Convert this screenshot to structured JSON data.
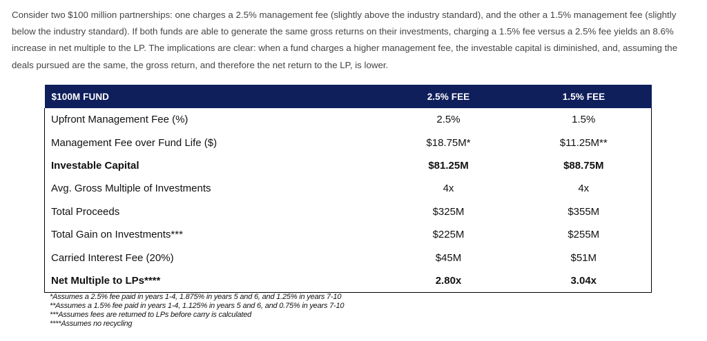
{
  "intro": {
    "text": "Consider two $100 million partnerships: one charges a 2.5% management fee (slightly above the industry standard), and the other a 1.5% management fee (slightly below the industry standard). If both funds are able to generate the same gross returns on their investments, charging a 1.5% fee versus a 2.5% fee yields an 8.6% increase in net multiple to the LP. The implications are clear: when a fund charges a higher management fee, the investable capital is diminished, and, assuming the deals pursued are the same, the gross return, and therefore the net return to the LP, is lower."
  },
  "table": {
    "headers": [
      "$100M FUND",
      "2.5% FEE",
      "1.5% FEE"
    ],
    "rows": [
      {
        "label": "Upfront Management Fee (%)",
        "fee25": "2.5%",
        "fee15": "1.5%",
        "bold": false
      },
      {
        "label": "Management Fee over Fund Life ($)",
        "fee25": "$18.75M*",
        "fee15": "$11.25M**",
        "bold": false
      },
      {
        "label": "Investable Capital",
        "fee25": "$81.25M",
        "fee15": "$88.75M",
        "bold": true
      },
      {
        "label": "Avg. Gross Multiple of Investments",
        "fee25": "4x",
        "fee15": "4x",
        "bold": false
      },
      {
        "label": "Total Proceeds",
        "fee25": "$325M",
        "fee15": "$355M",
        "bold": false
      },
      {
        "label": "Total Gain on Investments***",
        "fee25": "$225M",
        "fee15": "$255M",
        "bold": false
      },
      {
        "label": "Carried Interest Fee (20%)",
        "fee25": "$45M",
        "fee15": "$51M",
        "bold": false
      },
      {
        "label": "Net Multiple to LPs****",
        "fee25": "2.80x",
        "fee15": "3.04x",
        "bold": true
      }
    ]
  },
  "footnotes": [
    "*Assumes a 2.5% fee paid in years 1-4, 1.875% in years 5 and 6, and 1.25% in years 7-10",
    "**Assumes a 1.5% fee paid in years 1-4, 1.125% in years 5 and 6, and 0.75% in years 7-10",
    "***Assumes fees are returned to LPs before carry is calculated",
    "****Assumes no recycling"
  ]
}
